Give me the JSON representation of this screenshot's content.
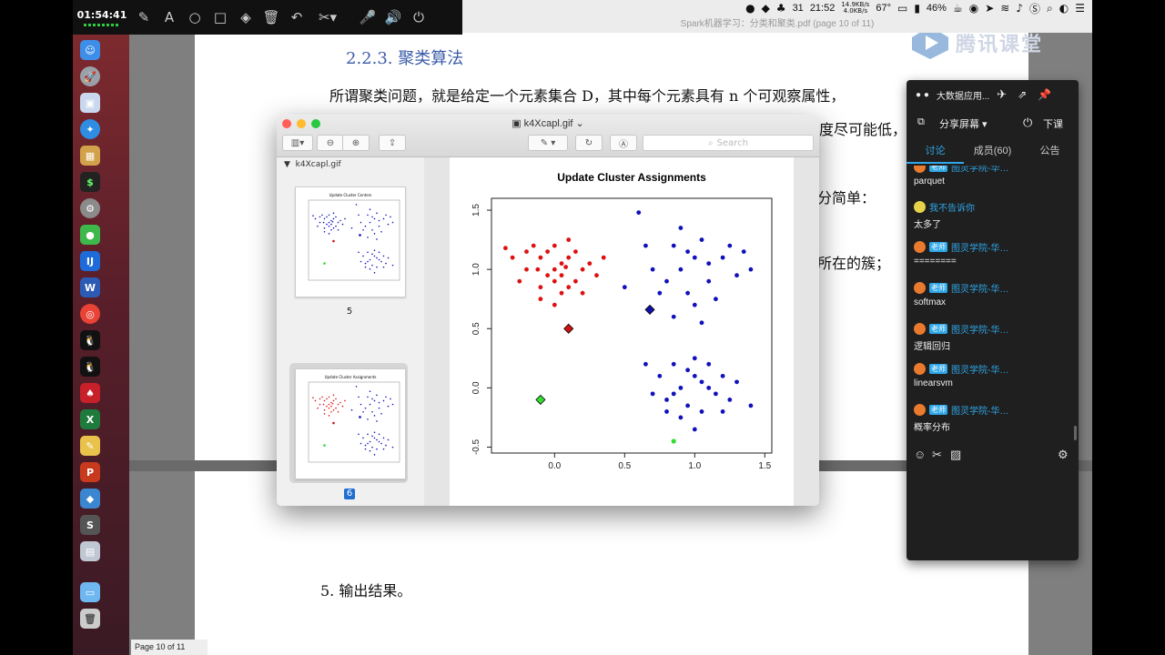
{
  "annotation_toolbar": {
    "time": "01:54:41",
    "tools": [
      "brush-icon",
      "text-icon",
      "circle-icon",
      "square-icon",
      "eraser-icon",
      "trash-icon",
      "undo-icon",
      "scissors-icon",
      "mic-icon",
      "speaker-icon",
      "power-icon"
    ],
    "text_tool": "A"
  },
  "menubar": {
    "battery_badge": "31",
    "clock": "21:52",
    "net_up": "14.9KB/s",
    "net_down": "4.0KB/s",
    "temp": "67°",
    "battery_pct": "46%"
  },
  "pdf_window_title": "Spark机器学习：分类和聚类.pdf (page 10 of 11)",
  "pdf": {
    "heading": "2.2.3.  聚类算法",
    "para1": "所谓聚类问题，就是给定一个元素集合 D，其中每个元素具有 n 个可观察属性，",
    "frag1": "度尽可能低，",
    "frag2": "分简单：",
    "frag3": "所在的簇；",
    "item5": "5.   输出结果。",
    "page_status": "Page 10 of 11"
  },
  "tencent_logo_text": "腾讯课堂",
  "preview": {
    "title": "k4Xcapl.gif",
    "search_placeholder": "Search",
    "sidebar_title": "k4Xcapl.gif",
    "thumb1_label": "5",
    "thumb1_caption": "Update Cluster Centers",
    "thumb2_label": "6",
    "thumb2_caption": "Update Cluster Assignments"
  },
  "chart_data": {
    "type": "scatter",
    "title": "Update Cluster Assignments",
    "xlabel": "",
    "ylabel": "",
    "xlim": [
      -0.45,
      1.55
    ],
    "ylim": [
      -0.55,
      1.6
    ],
    "xticks": [
      "0.0",
      "0.5",
      "1.0",
      "1.5"
    ],
    "yticks": [
      "-0.5",
      "0.0",
      "0.5",
      "1.0",
      "1.5"
    ],
    "series": [
      {
        "color": "#dd1111",
        "points": [
          [
            -0.1,
            1.1
          ],
          [
            0.0,
            1.0
          ],
          [
            0.05,
            1.05
          ],
          [
            -0.05,
            0.95
          ],
          [
            0.1,
            1.1
          ],
          [
            -0.2,
            1.0
          ],
          [
            0.15,
            0.9
          ],
          [
            -0.15,
            1.2
          ],
          [
            0.0,
            1.2
          ],
          [
            0.2,
            1.0
          ],
          [
            -0.1,
            0.85
          ],
          [
            0.05,
            0.8
          ],
          [
            0.25,
            1.05
          ],
          [
            -0.25,
            0.9
          ],
          [
            0.1,
            1.25
          ],
          [
            -0.05,
            1.15
          ],
          [
            0.3,
            0.95
          ],
          [
            0.0,
            0.7
          ],
          [
            -0.3,
            1.1
          ],
          [
            0.15,
            1.15
          ],
          [
            0.2,
            0.8
          ],
          [
            -0.1,
            0.75
          ],
          [
            0.05,
            0.95
          ],
          [
            -0.2,
            1.15
          ],
          [
            0.1,
            0.85
          ],
          [
            0.35,
            1.1
          ],
          [
            -0.35,
            1.18
          ],
          [
            0.0,
            0.9
          ],
          [
            0.08,
            1.02
          ],
          [
            -0.12,
            1.0
          ]
        ]
      },
      {
        "color": "#1111bb",
        "points": [
          [
            1.0,
            1.1
          ],
          [
            0.9,
            1.0
          ],
          [
            1.1,
            0.9
          ],
          [
            0.85,
            1.2
          ],
          [
            1.2,
            1.1
          ],
          [
            0.95,
            0.8
          ],
          [
            1.05,
            1.25
          ],
          [
            0.7,
            1.0
          ],
          [
            1.3,
            0.95
          ],
          [
            0.8,
            0.9
          ],
          [
            1.15,
            0.75
          ],
          [
            0.65,
            1.2
          ],
          [
            1.0,
            0.7
          ],
          [
            1.25,
            1.2
          ],
          [
            0.9,
            1.35
          ],
          [
            1.4,
            1.0
          ],
          [
            0.75,
            0.8
          ],
          [
            1.1,
            1.05
          ],
          [
            0.6,
            1.48
          ],
          [
            1.05,
            0.55
          ],
          [
            0.5,
            0.85
          ],
          [
            0.95,
            1.15
          ],
          [
            1.35,
            1.15
          ],
          [
            0.85,
            0.6
          ]
        ]
      },
      {
        "color": "#1111bb",
        "points": [
          [
            0.9,
            0.0
          ],
          [
            1.0,
            0.1
          ],
          [
            0.8,
            -0.1
          ],
          [
            1.1,
            0.0
          ],
          [
            0.95,
            -0.15
          ],
          [
            1.2,
            0.1
          ],
          [
            0.75,
            0.1
          ],
          [
            1.05,
            -0.2
          ],
          [
            0.85,
            0.2
          ],
          [
            1.15,
            -0.05
          ],
          [
            0.7,
            -0.05
          ],
          [
            1.25,
            -0.1
          ],
          [
            1.0,
            0.25
          ],
          [
            0.9,
            -0.25
          ],
          [
            1.3,
            0.05
          ],
          [
            0.65,
            0.2
          ],
          [
            1.1,
            0.2
          ],
          [
            0.8,
            -0.2
          ],
          [
            1.2,
            -0.2
          ],
          [
            1.0,
            -0.35
          ],
          [
            1.4,
            -0.15
          ],
          [
            0.95,
            0.15
          ],
          [
            1.05,
            0.05
          ],
          [
            0.85,
            -0.05
          ]
        ]
      }
    ],
    "centers": [
      {
        "x": 0.1,
        "y": 0.5,
        "color": "#cc1111"
      },
      {
        "x": 0.68,
        "y": 0.66,
        "color": "#1111aa"
      },
      {
        "x": -0.1,
        "y": -0.1,
        "color": "#33dd33"
      }
    ],
    "extra_points": [
      {
        "x": 0.85,
        "y": -0.45,
        "color": "#33dd33"
      }
    ]
  },
  "panel": {
    "title": "大数据应用...",
    "share_screen": "分享屏幕",
    "end_class": "下课",
    "tabs": [
      "讨论",
      "成员(60)",
      "公告"
    ],
    "messages": [
      {
        "name": "图灵学院-华…",
        "badge": "老师",
        "text": "parquet"
      },
      {
        "name": "我不告诉你",
        "badge": "",
        "text": "太多了"
      },
      {
        "name": "图灵学院-华…",
        "badge": "老师",
        "text": "========"
      },
      {
        "name": "图灵学院-华…",
        "badge": "老师",
        "text": "softmax"
      },
      {
        "name": "图灵学院-华…",
        "badge": "老师",
        "text": "逻辑回归"
      },
      {
        "name": "图灵学院-华…",
        "badge": "老师",
        "text": "linearsvm"
      },
      {
        "name": "图灵学院-华…",
        "badge": "老师",
        "text": "概率分布"
      }
    ]
  },
  "dock_apps": [
    "finder",
    "launchpad",
    "preview",
    "safari",
    "terminal",
    "system-preferences",
    "wechat",
    "intellij",
    "word",
    "chrome",
    "qq",
    "qq2",
    "cards",
    "excel",
    "pages",
    "powerpoint",
    "sourcetree",
    "sublime",
    "photos",
    "folder",
    "trash"
  ]
}
